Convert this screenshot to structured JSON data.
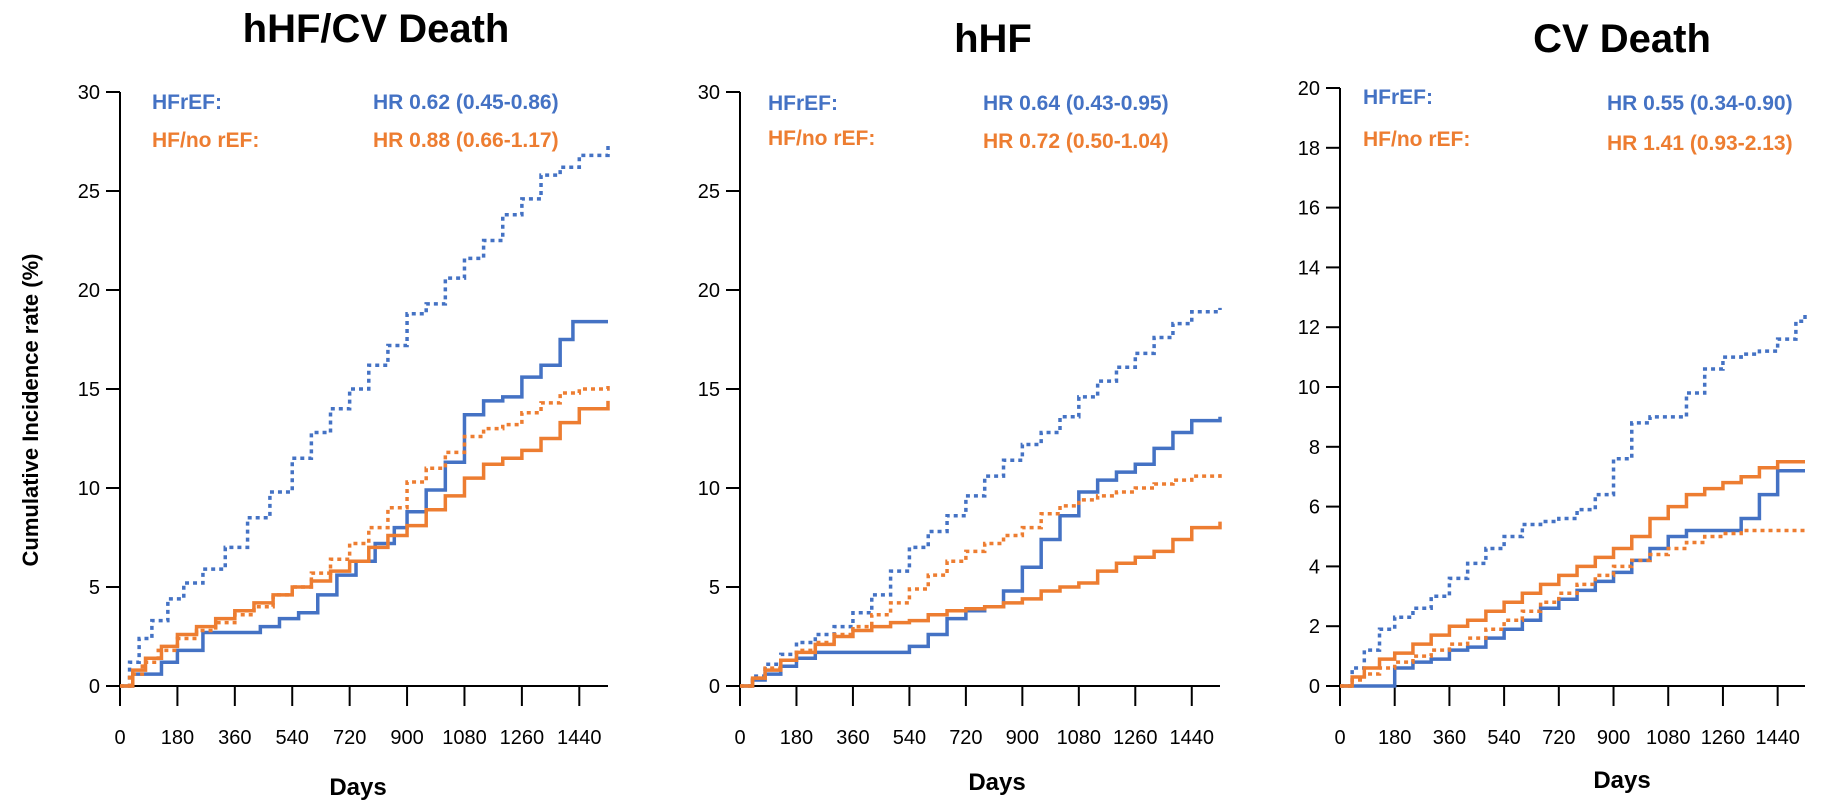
{
  "colors": {
    "hfref": "#4472C4",
    "hf_no_ref": "#ED7D31",
    "axis": "#000000"
  },
  "chart_data": [
    {
      "type": "line",
      "title": "hHF/CV Death",
      "xlabel": "Days",
      "ylabel": "Cumulative Incidence rate (%)",
      "xlim": [
        0,
        1530
      ],
      "ylim": [
        0,
        30
      ],
      "xticks": [
        0,
        180,
        360,
        540,
        720,
        900,
        1080,
        1260,
        1440
      ],
      "yticks": [
        0,
        5,
        10,
        15,
        20,
        25,
        30
      ],
      "legend": [
        {
          "label": "HFrEF:",
          "hr": "HR 0.62 (0.45-0.86)"
        },
        {
          "label": "HF/no rEF:",
          "hr": "HR 0.88 (0.66-1.17)"
        }
      ],
      "series": [
        {
          "group": "HFrEF",
          "style": "dotted",
          "x": [
            0,
            30,
            60,
            100,
            150,
            200,
            260,
            330,
            400,
            470,
            540,
            600,
            660,
            720,
            780,
            840,
            900,
            960,
            1020,
            1080,
            1140,
            1200,
            1260,
            1320,
            1380,
            1440,
            1530
          ],
          "y": [
            0,
            1.2,
            2.4,
            3.3,
            4.4,
            5.2,
            5.9,
            7.0,
            8.5,
            9.8,
            11.5,
            12.8,
            14.0,
            15.0,
            16.2,
            17.2,
            18.8,
            19.3,
            20.6,
            21.6,
            22.5,
            23.8,
            24.6,
            25.8,
            26.2,
            26.8,
            27.4
          ]
        },
        {
          "group": "HFrEF",
          "style": "solid",
          "x": [
            0,
            40,
            80,
            130,
            180,
            260,
            320,
            380,
            440,
            500,
            560,
            620,
            680,
            740,
            800,
            860,
            900,
            960,
            1020,
            1080,
            1140,
            1200,
            1260,
            1320,
            1380,
            1420,
            1530
          ],
          "y": [
            0,
            0.6,
            0.6,
            1.2,
            1.8,
            2.7,
            2.7,
            2.7,
            3.0,
            3.4,
            3.7,
            4.6,
            5.6,
            6.3,
            7.2,
            8.0,
            8.8,
            9.9,
            11.3,
            13.7,
            14.4,
            14.6,
            15.6,
            16.2,
            17.5,
            18.4,
            18.4
          ]
        },
        {
          "group": "HF/no rEF",
          "style": "dotted",
          "x": [
            0,
            30,
            70,
            120,
            180,
            240,
            300,
            360,
            420,
            480,
            540,
            600,
            660,
            720,
            780,
            840,
            900,
            960,
            1020,
            1080,
            1140,
            1200,
            1260,
            1320,
            1380,
            1440,
            1530
          ],
          "y": [
            0,
            0.6,
            1.2,
            1.8,
            2.4,
            2.8,
            3.2,
            3.6,
            4.0,
            4.6,
            5.0,
            5.7,
            6.4,
            7.2,
            8.0,
            9.0,
            10.3,
            11.0,
            11.8,
            12.6,
            13.0,
            13.2,
            13.8,
            14.3,
            14.8,
            15.0,
            15.2
          ]
        },
        {
          "group": "HF/no rEF",
          "style": "solid",
          "x": [
            0,
            40,
            80,
            130,
            180,
            240,
            300,
            360,
            420,
            480,
            540,
            600,
            660,
            720,
            780,
            840,
            900,
            960,
            1020,
            1080,
            1140,
            1200,
            1260,
            1320,
            1380,
            1440,
            1530
          ],
          "y": [
            0,
            0.8,
            1.4,
            2.0,
            2.6,
            3.0,
            3.4,
            3.8,
            4.2,
            4.6,
            5.0,
            5.3,
            5.8,
            6.3,
            7.0,
            7.6,
            8.1,
            8.9,
            9.6,
            10.5,
            11.2,
            11.5,
            11.9,
            12.5,
            13.3,
            14.0,
            14.4
          ]
        }
      ]
    },
    {
      "type": "line",
      "title": "hHF",
      "xlabel": "Days",
      "ylabel": "",
      "xlim": [
        0,
        1530
      ],
      "ylim": [
        0,
        30
      ],
      "xticks": [
        0,
        180,
        360,
        540,
        720,
        900,
        1080,
        1260,
        1440
      ],
      "yticks": [
        0,
        5,
        10,
        15,
        20,
        25,
        30
      ],
      "legend": [
        {
          "label": "HFrEF:",
          "hr": "HR 0.64 (0.43-0.95)"
        },
        {
          "label": "HF/no rEF:",
          "hr": "HR 0.72 (0.50-1.04)"
        }
      ],
      "series": [
        {
          "group": "HFrEF",
          "style": "dotted",
          "x": [
            0,
            40,
            80,
            130,
            180,
            240,
            300,
            360,
            420,
            480,
            540,
            600,
            660,
            720,
            780,
            840,
            900,
            960,
            1020,
            1080,
            1140,
            1200,
            1260,
            1320,
            1380,
            1440,
            1530
          ],
          "y": [
            0,
            0.5,
            1.1,
            1.6,
            2.2,
            2.6,
            3.0,
            3.7,
            4.6,
            5.8,
            7.0,
            7.8,
            8.6,
            9.6,
            10.6,
            11.4,
            12.2,
            12.8,
            13.6,
            14.6,
            15.4,
            16.1,
            16.8,
            17.6,
            18.3,
            18.9,
            19.1
          ]
        },
        {
          "group": "HFrEF",
          "style": "solid",
          "x": [
            0,
            40,
            80,
            130,
            180,
            240,
            300,
            360,
            420,
            480,
            540,
            600,
            660,
            720,
            780,
            840,
            900,
            960,
            1020,
            1080,
            1140,
            1200,
            1260,
            1320,
            1380,
            1440,
            1530
          ],
          "y": [
            0,
            0.3,
            0.6,
            1.0,
            1.4,
            1.7,
            1.7,
            1.7,
            1.7,
            1.7,
            2.0,
            2.6,
            3.4,
            3.8,
            4.0,
            4.8,
            6.0,
            7.4,
            8.6,
            9.8,
            10.4,
            10.8,
            11.2,
            12.0,
            12.8,
            13.4,
            13.6
          ]
        },
        {
          "group": "HF/no rEF",
          "style": "dotted",
          "x": [
            0,
            40,
            80,
            130,
            180,
            240,
            300,
            360,
            420,
            480,
            540,
            600,
            660,
            720,
            780,
            840,
            900,
            960,
            1020,
            1080,
            1140,
            1200,
            1260,
            1320,
            1380,
            1440,
            1530
          ],
          "y": [
            0,
            0.4,
            0.9,
            1.3,
            1.8,
            2.2,
            2.6,
            3.0,
            3.6,
            4.2,
            4.9,
            5.6,
            6.3,
            6.8,
            7.2,
            7.6,
            8.0,
            8.7,
            9.1,
            9.4,
            9.6,
            9.8,
            10.0,
            10.2,
            10.4,
            10.6,
            10.7
          ]
        },
        {
          "group": "HF/no rEF",
          "style": "solid",
          "x": [
            0,
            40,
            80,
            130,
            180,
            240,
            300,
            360,
            420,
            480,
            540,
            600,
            660,
            720,
            780,
            840,
            900,
            960,
            1020,
            1080,
            1140,
            1200,
            1260,
            1320,
            1380,
            1440,
            1530
          ],
          "y": [
            0,
            0.4,
            0.8,
            1.3,
            1.7,
            2.1,
            2.5,
            2.8,
            3.0,
            3.2,
            3.3,
            3.6,
            3.8,
            3.9,
            4.0,
            4.2,
            4.4,
            4.8,
            5.0,
            5.2,
            5.8,
            6.2,
            6.5,
            6.8,
            7.4,
            8.0,
            8.3
          ]
        }
      ]
    },
    {
      "type": "line",
      "title": "CV Death",
      "xlabel": "Days",
      "ylabel": "",
      "xlim": [
        0,
        1530
      ],
      "ylim": [
        0,
        20
      ],
      "xticks": [
        0,
        180,
        360,
        540,
        720,
        900,
        1080,
        1260,
        1440
      ],
      "yticks": [
        0,
        2,
        4,
        6,
        8,
        10,
        12,
        14,
        16,
        18,
        20
      ],
      "legend": [
        {
          "label": "HFrEF:",
          "hr": "HR 0.55 (0.34-0.90)"
        },
        {
          "label": "HF/no rEF:",
          "hr": "HR 1.41 (0.93-2.13)"
        }
      ],
      "series": [
        {
          "group": "HFrEF",
          "style": "dotted",
          "x": [
            0,
            40,
            80,
            130,
            180,
            240,
            300,
            360,
            420,
            480,
            540,
            600,
            660,
            720,
            780,
            840,
            900,
            960,
            1020,
            1080,
            1140,
            1200,
            1260,
            1320,
            1380,
            1440,
            1500,
            1530
          ],
          "y": [
            0,
            0.6,
            1.2,
            1.9,
            2.3,
            2.6,
            3.0,
            3.6,
            4.1,
            4.6,
            5.0,
            5.4,
            5.5,
            5.6,
            5.9,
            6.4,
            7.6,
            8.8,
            9.0,
            9.0,
            9.8,
            10.6,
            11.0,
            11.1,
            11.2,
            11.6,
            12.2,
            12.5
          ]
        },
        {
          "group": "HFrEF",
          "style": "solid",
          "x": [
            0,
            130,
            180,
            240,
            300,
            360,
            420,
            480,
            540,
            600,
            660,
            720,
            780,
            840,
            900,
            960,
            1020,
            1080,
            1140,
            1200,
            1260,
            1320,
            1380,
            1440,
            1530
          ],
          "y": [
            0,
            0.0,
            0.6,
            0.8,
            0.9,
            1.2,
            1.3,
            1.6,
            1.9,
            2.2,
            2.6,
            2.9,
            3.2,
            3.5,
            3.8,
            4.2,
            4.6,
            5.0,
            5.2,
            5.2,
            5.2,
            5.6,
            6.4,
            7.2,
            7.2
          ]
        },
        {
          "group": "HF/no rEF",
          "style": "dotted",
          "x": [
            0,
            40,
            80,
            130,
            180,
            240,
            300,
            360,
            420,
            480,
            540,
            600,
            660,
            720,
            780,
            840,
            900,
            960,
            1020,
            1080,
            1140,
            1200,
            1260,
            1320,
            1380,
            1440,
            1530
          ],
          "y": [
            0,
            0.2,
            0.4,
            0.6,
            0.8,
            1.0,
            1.2,
            1.4,
            1.6,
            1.9,
            2.2,
            2.5,
            2.8,
            3.1,
            3.4,
            3.7,
            4.0,
            4.2,
            4.4,
            4.6,
            4.8,
            5.0,
            5.1,
            5.2,
            5.2,
            5.2,
            5.2
          ]
        },
        {
          "group": "HF/no rEF",
          "style": "solid",
          "x": [
            0,
            40,
            80,
            130,
            180,
            240,
            300,
            360,
            420,
            480,
            540,
            600,
            660,
            720,
            780,
            840,
            900,
            960,
            1020,
            1080,
            1140,
            1200,
            1260,
            1320,
            1380,
            1440,
            1530
          ],
          "y": [
            0,
            0.3,
            0.6,
            0.9,
            1.1,
            1.4,
            1.7,
            2.0,
            2.2,
            2.5,
            2.8,
            3.1,
            3.4,
            3.7,
            4.0,
            4.3,
            4.6,
            5.0,
            5.6,
            6.0,
            6.4,
            6.6,
            6.8,
            7.0,
            7.3,
            7.5,
            7.5
          ]
        }
      ]
    }
  ]
}
